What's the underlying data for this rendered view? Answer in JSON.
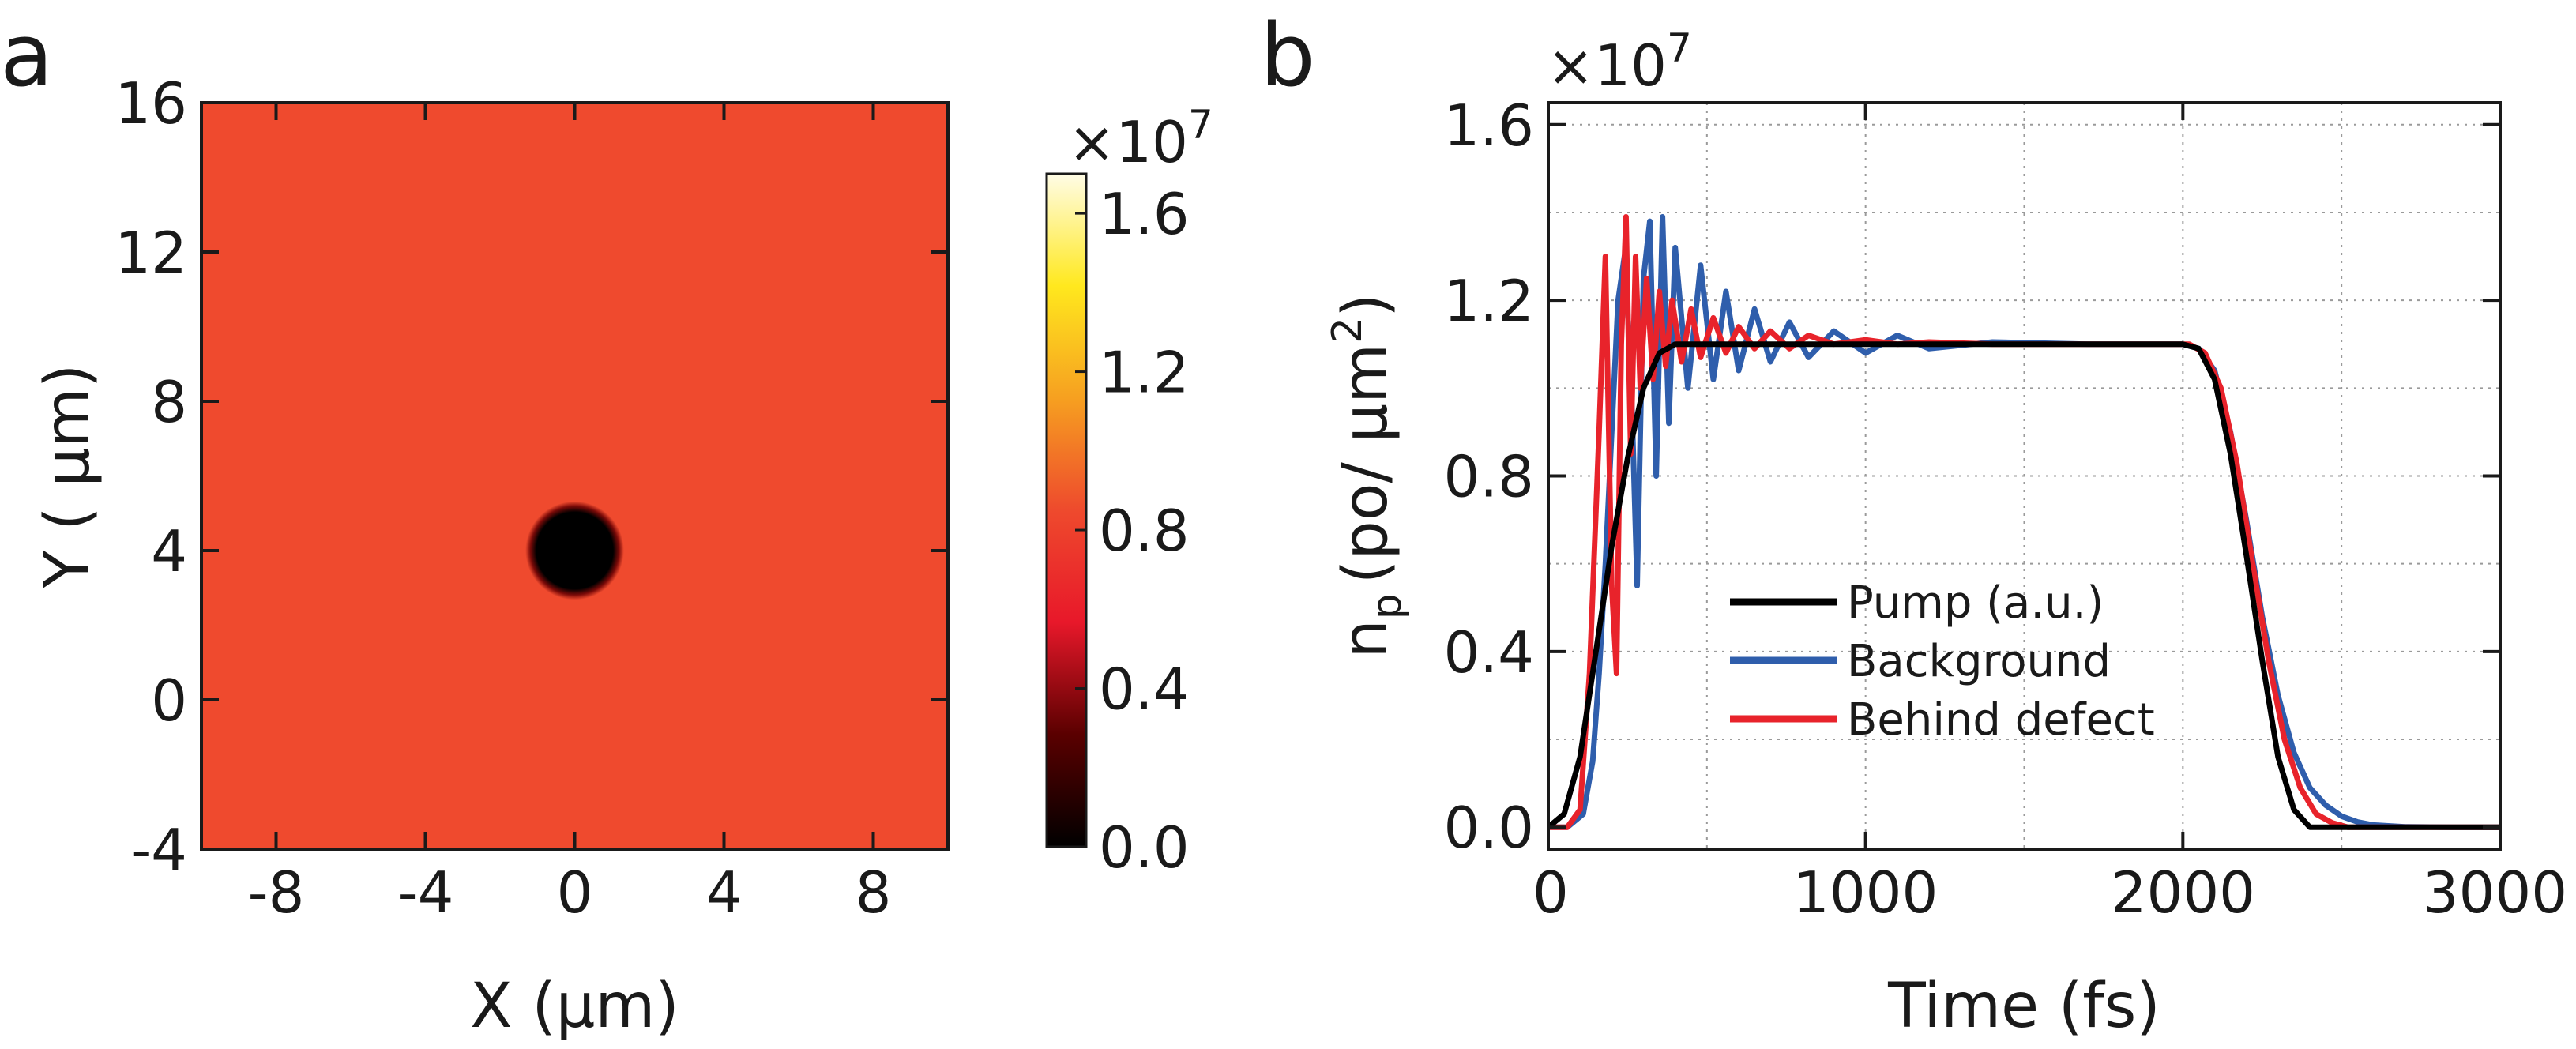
{
  "chart_data": [
    {
      "type": "heatmap",
      "panel_label": "a",
      "xlabel": "X (μm)",
      "ylabel": "Y ( μm)",
      "xlim": [
        -10,
        10
      ],
      "ylim": [
        -4,
        16
      ],
      "xticks": [
        -8,
        -4,
        0,
        4,
        8
      ],
      "yticks": [
        -4,
        0,
        4,
        8,
        12,
        16
      ],
      "field_value": 0.66,
      "defect": {
        "center_x": 0,
        "center_y": 4,
        "radius": 1.0,
        "value": 0.0
      },
      "colorbar": {
        "range": [
          0,
          1.7
        ],
        "ticks": [
          0.0,
          0.4,
          0.8,
          1.2,
          1.6
        ],
        "tick_labels": [
          "0.0",
          "0.4",
          "0.8",
          "1.2",
          "1.6"
        ],
        "multiplier": "×10",
        "exponent": "7",
        "colormap": "hot",
        "stops": [
          "#000000",
          "#5a0000",
          "#e8182a",
          "#ee4a2d",
          "#f6a020",
          "#ffe81e",
          "#fffce6"
        ]
      },
      "colors": {
        "field": "#ef4a2e",
        "defect": "#000000"
      }
    },
    {
      "type": "line",
      "panel_label": "b",
      "xlabel": "Time (fs)",
      "ylabel_main": "n",
      "ylabel_sub": "p",
      "ylabel_units": "(po/ μm",
      "ylabel_sup": "2",
      "ylabel_close": ")",
      "multiplier": "×10",
      "exponent": "7",
      "xlim": [
        0,
        3000
      ],
      "ylim": [
        -0.05,
        1.65
      ],
      "xticks": [
        0,
        1000,
        2000,
        3000
      ],
      "xtick_labels": [
        "0",
        "1000",
        "2000",
        "3000"
      ],
      "yticks": [
        0.0,
        0.4,
        0.8,
        1.2,
        1.6
      ],
      "ytick_labels": [
        "0.0",
        "0.4",
        "0.8",
        "1.2",
        "1.6"
      ],
      "grid": true,
      "legend_position": "center-left",
      "series": [
        {
          "name": "Pump (a.u.)",
          "color": "#000000",
          "x": [
            0,
            50,
            100,
            150,
            200,
            250,
            300,
            350,
            400,
            2000,
            2050,
            2100,
            2150,
            2200,
            2250,
            2300,
            2350,
            2400,
            3000
          ],
          "y": [
            0.0,
            0.03,
            0.16,
            0.4,
            0.64,
            0.84,
            1.0,
            1.08,
            1.1,
            1.1,
            1.09,
            1.02,
            0.85,
            0.62,
            0.38,
            0.16,
            0.04,
            0.0,
            0.0
          ]
        },
        {
          "name": "Background",
          "color": "#2f5eac",
          "x": [
            0,
            60,
            110,
            140,
            160,
            180,
            200,
            220,
            240,
            260,
            280,
            300,
            320,
            340,
            360,
            380,
            400,
            440,
            480,
            520,
            560,
            600,
            650,
            700,
            760,
            820,
            900,
            1000,
            1100,
            1200,
            1400,
            1700,
            2000,
            2050,
            2100,
            2150,
            2200,
            2250,
            2300,
            2350,
            2400,
            2450,
            2500,
            2550,
            2600,
            2700,
            2850,
            3000
          ],
          "y": [
            0.0,
            0.0,
            0.03,
            0.15,
            0.35,
            0.6,
            0.9,
            1.2,
            1.3,
            1.05,
            0.55,
            1.25,
            1.38,
            0.8,
            1.39,
            0.92,
            1.32,
            1.0,
            1.28,
            1.02,
            1.22,
            1.04,
            1.18,
            1.06,
            1.15,
            1.07,
            1.13,
            1.08,
            1.12,
            1.09,
            1.105,
            1.1,
            1.1,
            1.09,
            1.04,
            0.9,
            0.7,
            0.48,
            0.3,
            0.17,
            0.09,
            0.05,
            0.025,
            0.012,
            0.005,
            0.001,
            0.0,
            0.0
          ]
        },
        {
          "name": "Behind defect",
          "color": "#e8232b",
          "x": [
            0,
            60,
            100,
            130,
            160,
            180,
            200,
            215,
            230,
            245,
            260,
            275,
            290,
            310,
            330,
            350,
            370,
            390,
            420,
            450,
            480,
            520,
            560,
            600,
            650,
            700,
            760,
            820,
            900,
            1000,
            1100,
            1200,
            1400,
            1700,
            2020,
            2070,
            2120,
            2170,
            2220,
            2270,
            2320,
            2370,
            2420,
            2470,
            2520,
            3000
          ],
          "y": [
            0.0,
            0.0,
            0.04,
            0.35,
            0.9,
            1.3,
            0.55,
            0.35,
            1.1,
            1.39,
            0.85,
            1.3,
            1.0,
            1.25,
            1.02,
            1.22,
            1.05,
            1.2,
            1.06,
            1.18,
            1.07,
            1.16,
            1.08,
            1.14,
            1.09,
            1.13,
            1.09,
            1.12,
            1.1,
            1.11,
            1.1,
            1.105,
            1.1,
            1.1,
            1.1,
            1.08,
            1.0,
            0.83,
            0.6,
            0.38,
            0.2,
            0.09,
            0.03,
            0.01,
            0.0,
            0.0
          ]
        }
      ]
    }
  ]
}
